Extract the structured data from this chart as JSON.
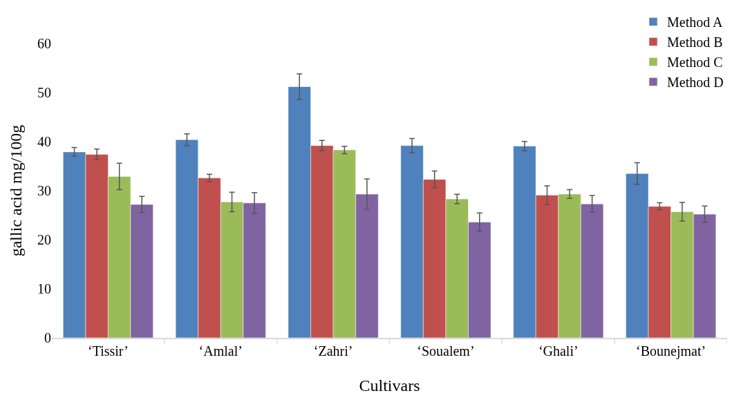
{
  "chart_data": {
    "type": "bar",
    "xlabel": "Cultivars",
    "ylabel": "gallic acid mg/100g",
    "categories": [
      "‘Tissir’",
      "‘Amlal’",
      "‘Zahri’",
      "‘Soualem’",
      "‘Ghali’",
      "‘Bounejmat’"
    ],
    "series": [
      {
        "name": "Method A",
        "color": "#4f81bd",
        "values": [
          37.9,
          40.4,
          51.2,
          39.2,
          39.1,
          33.5
        ],
        "errors": [
          0.9,
          1.2,
          2.6,
          1.45,
          0.95,
          2.2
        ]
      },
      {
        "name": "Method B",
        "color": "#c0504d",
        "values": [
          37.4,
          32.6,
          39.2,
          32.3,
          29.1,
          26.8
        ],
        "errors": [
          1.1,
          0.75,
          1.05,
          1.7,
          1.9,
          0.75
        ]
      },
      {
        "name": "Method C",
        "color": "#9bbb59",
        "values": [
          32.9,
          27.7,
          38.3,
          28.3,
          29.3,
          25.7
        ],
        "errors": [
          2.7,
          2.0,
          0.75,
          0.95,
          0.9,
          1.9
        ]
      },
      {
        "name": "Method D",
        "color": "#8064a2",
        "values": [
          27.2,
          27.5,
          29.3,
          23.6,
          27.3,
          25.2
        ],
        "errors": [
          1.65,
          2.1,
          3.1,
          1.85,
          1.7,
          1.65
        ]
      }
    ],
    "ylim": [
      0,
      60
    ],
    "yticks": [
      0,
      10,
      20,
      30,
      40,
      50,
      60
    ],
    "grid": false,
    "legend": "top right"
  }
}
